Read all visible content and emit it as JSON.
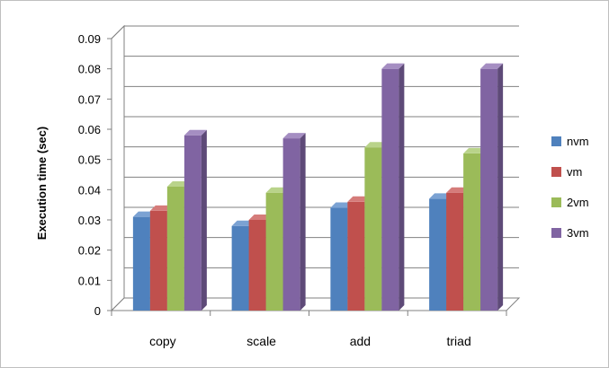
{
  "chart_data": {
    "type": "bar",
    "title": "",
    "xlabel": "",
    "ylabel": "Execution time (sec)",
    "ylim": [
      0,
      0.09
    ],
    "yticks": [
      "0",
      "0.01",
      "0.02",
      "0.03",
      "0.04",
      "0.05",
      "0.06",
      "0.07",
      "0.08",
      "0.09"
    ],
    "categories": [
      "copy",
      "scale",
      "add",
      "triad"
    ],
    "series": [
      {
        "name": "nvm",
        "color": "#4f81bd",
        "side": "#3a6291",
        "top": "#7ba2d3",
        "values": [
          0.031,
          0.028,
          0.034,
          0.037
        ]
      },
      {
        "name": "vm",
        "color": "#c0504d",
        "side": "#8f3b39",
        "top": "#d57c7a",
        "values": [
          0.033,
          0.03,
          0.036,
          0.039
        ]
      },
      {
        "name": "2vm",
        "color": "#9bbb59",
        "side": "#738c42",
        "top": "#b9d38a",
        "values": [
          0.041,
          0.039,
          0.054,
          0.052
        ]
      },
      {
        "name": "3vm",
        "color": "#8064a2",
        "side": "#5e4a78",
        "top": "#a58ec2",
        "values": [
          0.058,
          0.057,
          0.08,
          0.08
        ]
      }
    ],
    "grid": true,
    "legend_position": "right",
    "style": "3d-clustered-column"
  }
}
